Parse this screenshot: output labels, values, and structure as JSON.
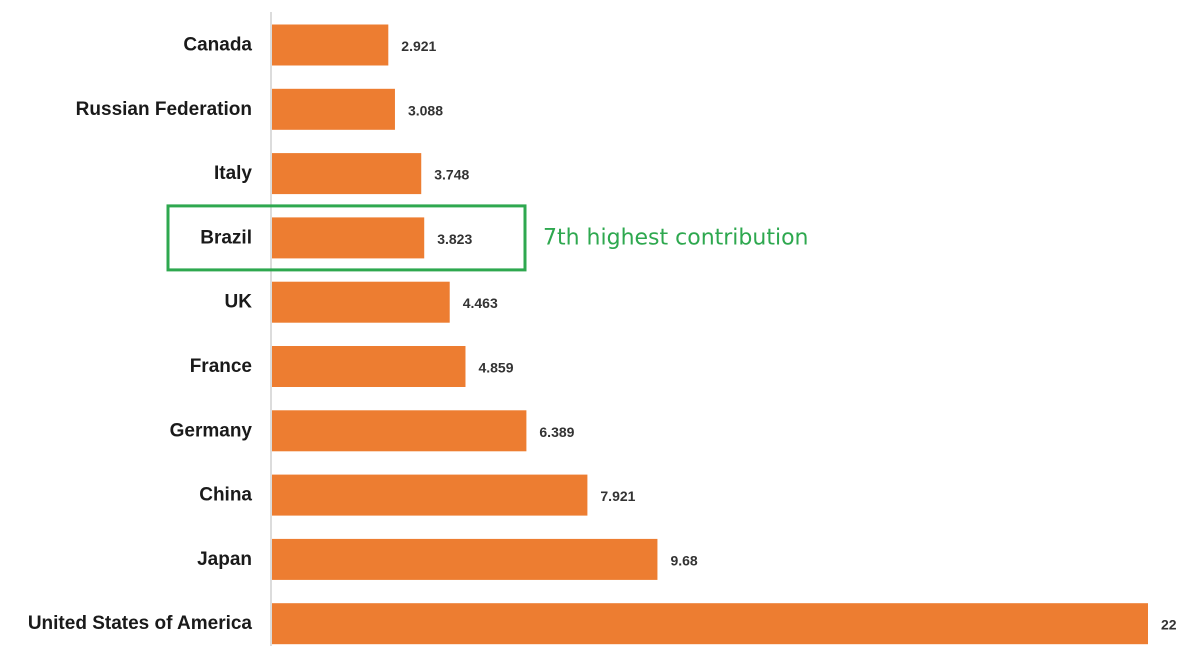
{
  "colors": {
    "bar": "#ed7d31",
    "axis": "#d0d0d0",
    "highlight": "#2ea84f"
  },
  "annotation": {
    "category": "Brazil",
    "text": "7th highest contribution"
  },
  "chart_data": {
    "type": "bar",
    "orientation": "horizontal",
    "title": "",
    "xlabel": "",
    "ylabel": "",
    "categories": [
      "Canada",
      "Russian Federation",
      "Italy",
      "Brazil",
      "UK",
      "France",
      "Germany",
      "China",
      "Japan",
      "United States of America"
    ],
    "values": [
      2.921,
      3.088,
      3.748,
      3.823,
      4.463,
      4.859,
      6.389,
      7.921,
      9.68,
      22
    ],
    "value_labels": [
      "2.921",
      "3.088",
      "3.748",
      "3.823",
      "4.463",
      "4.859",
      "6.389",
      "7.921",
      "9.68",
      "22"
    ],
    "xlim": [
      0,
      22
    ],
    "grid": false,
    "legend": "none"
  }
}
